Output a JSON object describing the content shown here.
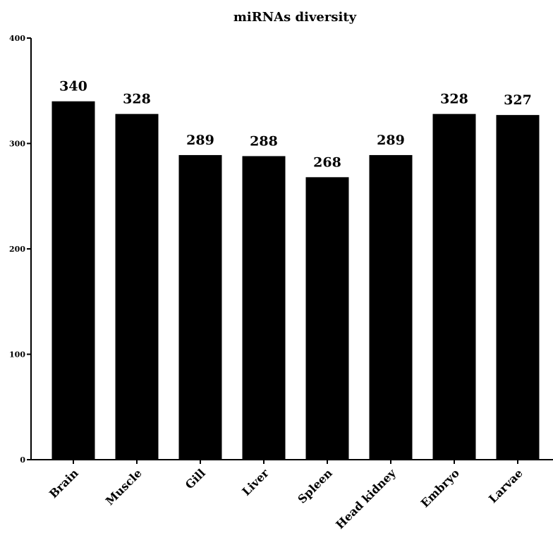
{
  "chart_data": {
    "type": "bar",
    "title": "miRNAs diversity",
    "xlabel": "",
    "ylabel": "",
    "categories": [
      "Brain",
      "Muscle",
      "Gill",
      "Liver",
      "Spleen",
      "Head kidney",
      "Embryo",
      "Larvae"
    ],
    "values": [
      340,
      328,
      289,
      288,
      268,
      289,
      328,
      327
    ],
    "data_labels": [
      "340",
      "328",
      "289",
      "288",
      "268",
      "289",
      "328",
      "327"
    ],
    "ylim": [
      0,
      400
    ],
    "yticks": [
      "0",
      "100",
      "200",
      "300",
      "400"
    ],
    "grid": false,
    "legend": "none",
    "bar_color": "#000000"
  }
}
